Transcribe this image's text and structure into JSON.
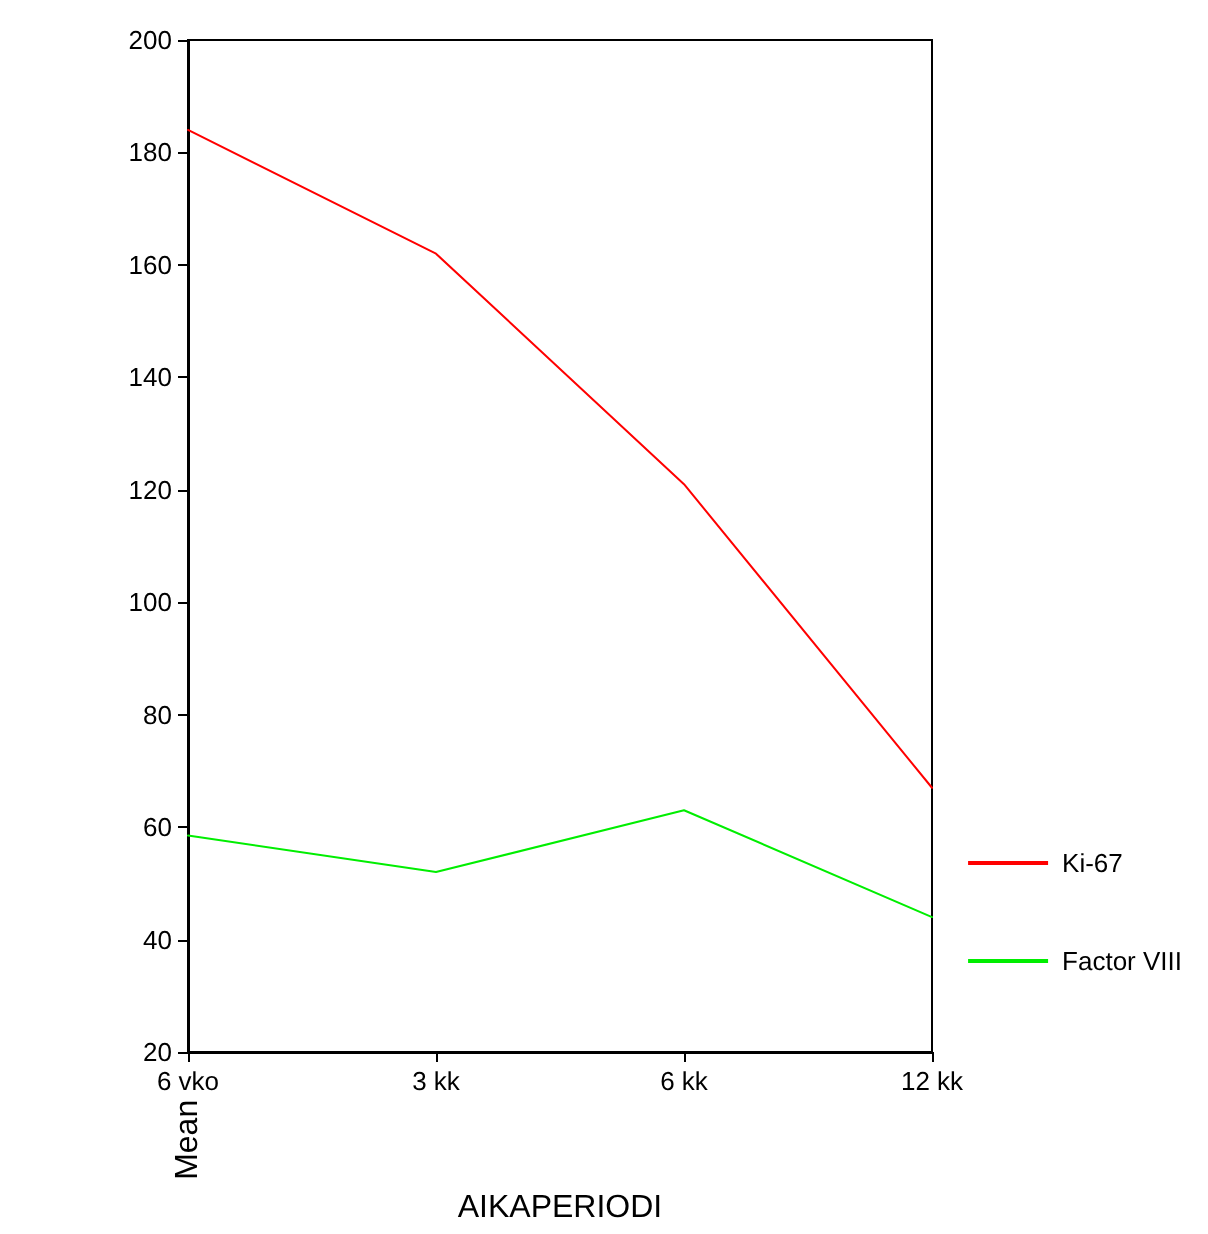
{
  "chart_data": {
    "type": "line",
    "xlabel": "AIKAPERIODI",
    "ylabel": "Mean",
    "categories": [
      "6 vko",
      "3 kk",
      "6 kk",
      "12 kk"
    ],
    "series": [
      {
        "name": "Ki-67",
        "color": "#ff0000",
        "values": [
          184,
          162,
          121,
          67
        ]
      },
      {
        "name": "Factor VIII",
        "color": "#00ee00",
        "values": [
          58.5,
          52,
          63,
          44
        ]
      }
    ],
    "ylim": [
      20,
      200
    ],
    "yticks": [
      20,
      40,
      60,
      80,
      100,
      120,
      140,
      160,
      180,
      200
    ],
    "grid": false,
    "legend": "right",
    "marker": "none",
    "line_style": "solid"
  }
}
